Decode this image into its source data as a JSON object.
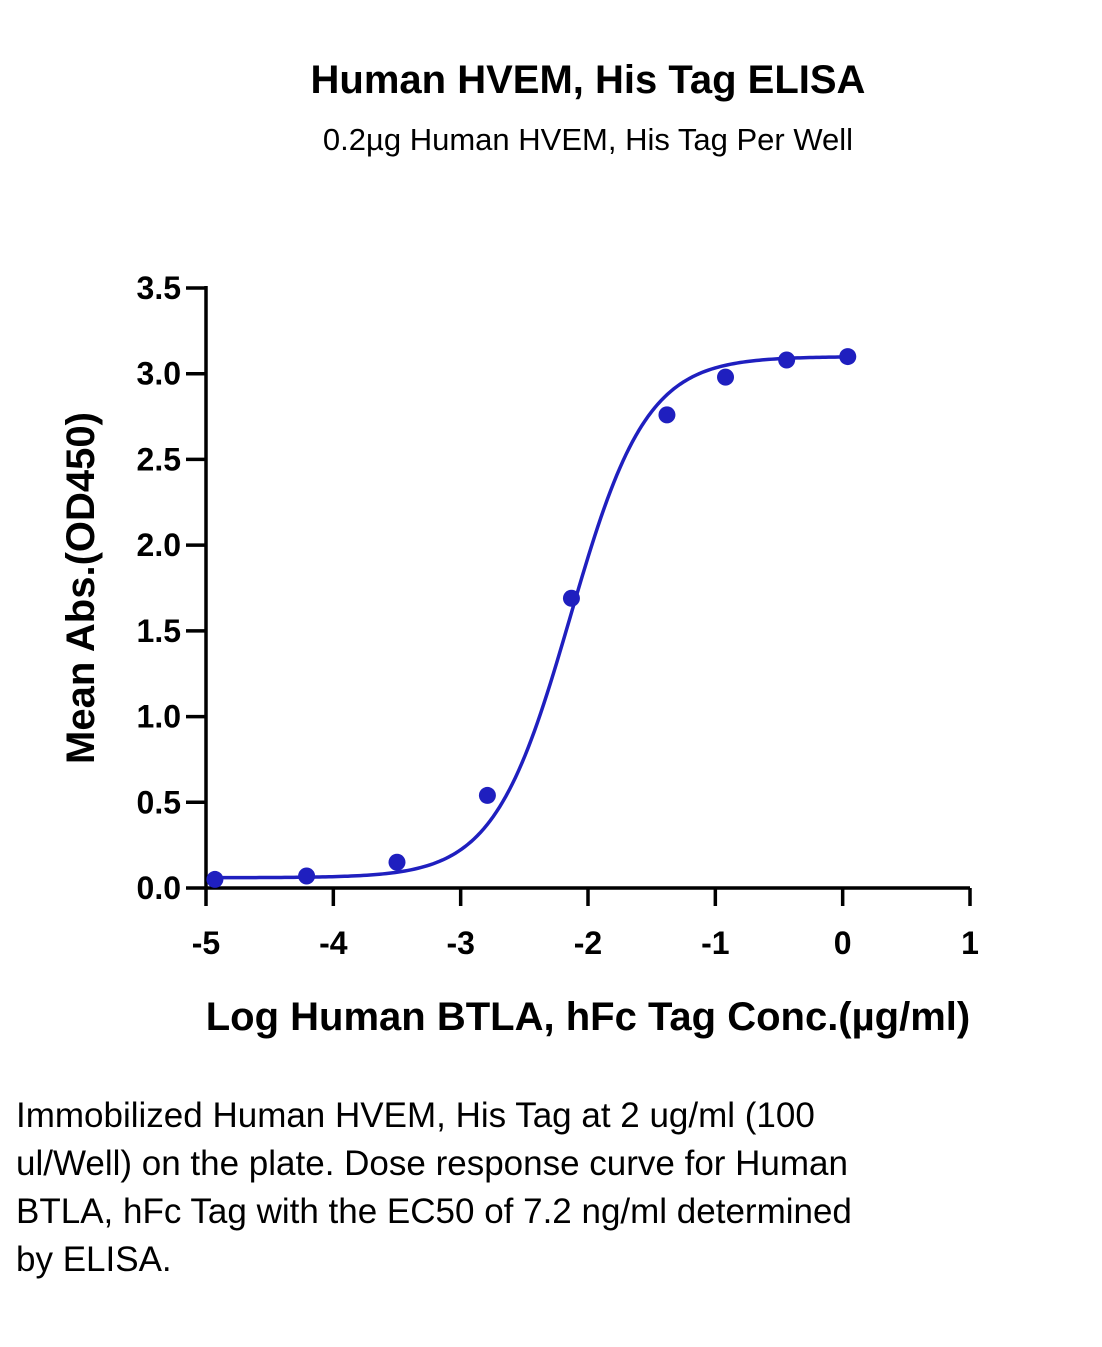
{
  "chart_data": {
    "type": "line",
    "title": "Human HVEM, His Tag ELISA",
    "subtitle": "0.2µg Human HVEM, His Tag Per Well",
    "xlabel": "Log Human BTLA, hFc Tag Conc.(µg/ml)",
    "ylabel": "Mean Abs.(OD450)",
    "xlim": [
      -5,
      1
    ],
    "ylim": [
      0,
      3.5
    ],
    "xticks": [
      "-5",
      "-4",
      "-3",
      "-2",
      "-1",
      "0",
      "1"
    ],
    "yticks": [
      "0.0",
      "0.5",
      "1.0",
      "1.5",
      "2.0",
      "2.5",
      "3.0",
      "3.5"
    ],
    "grid": false,
    "series": [
      {
        "x": [
          -4.93,
          -4.21,
          -3.5,
          -2.79,
          -2.13,
          -1.38,
          -0.92,
          -0.44,
          0.04
        ],
        "y": [
          0.05,
          0.07,
          0.15,
          0.54,
          1.69,
          2.76,
          2.98,
          3.08,
          3.1
        ],
        "color": "#1f1fbf",
        "fit": {
          "model": "4PL",
          "bottom": 0.06,
          "top": 3.1,
          "log_ec50": -2.14,
          "hill": 1.45
        }
      }
    ]
  },
  "caption": "Immobilized Human HVEM, His Tag at 2 ug/ml (100 ul/Well) on the plate. Dose response curve for Human BTLA, hFc Tag with the EC50 of 7.2 ng/ml determined by ELISA."
}
